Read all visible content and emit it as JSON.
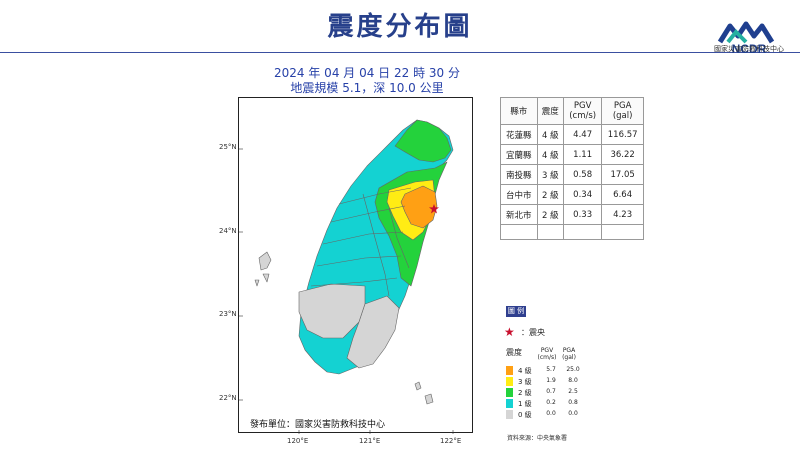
{
  "header": {
    "title": "震度分布圖",
    "logo_text": "NCDR",
    "logo_org": "國家災害防救科技中心",
    "datetime": "2024 年 04 月 04 日 22 時 30 分",
    "magnitude_depth": "地震規模 5.1，深 10.0 公里"
  },
  "map": {
    "lat_ticks": [
      "25°N",
      "24°N",
      "23°N",
      "22°N"
    ],
    "lon_ticks": [
      "120°E",
      "121°E",
      "122°E"
    ],
    "issuer": "發布單位：國家災害防救科技中心",
    "epicenter": {
      "lon": 121.62,
      "lat": 24.16
    },
    "colors": {
      "level_0": "#d5d5d5",
      "level_1": "#14d2d2",
      "level_2": "#24d23c",
      "level_3": "#ffec14",
      "level_4": "#ffa014",
      "epicenter": "#c8102e"
    }
  },
  "table": {
    "headers": [
      "縣市",
      "震度",
      "PGV\n(cm/s)",
      "PGA\n(gal)"
    ],
    "rows": [
      [
        "花蓮縣",
        "4 級",
        "4.47",
        "116.57"
      ],
      [
        "宜蘭縣",
        "4 級",
        "1.11",
        "36.22"
      ],
      [
        "南投縣",
        "3 級",
        "0.58",
        "17.05"
      ],
      [
        "台中市",
        "2 級",
        "0.34",
        "6.64"
      ],
      [
        "新北市",
        "2 級",
        "0.33",
        "4.23"
      ],
      [
        "",
        "",
        "",
        ""
      ]
    ]
  },
  "legend": {
    "badge": "圖 例",
    "epicenter_label": "：震央",
    "intensity_header": "震度",
    "pgv_header": "PGV\n(cm/s)",
    "pga_header": "PGA\n(gal)",
    "levels": [
      {
        "label": "4 級",
        "pgv": "5.7",
        "pga": "25.0",
        "color": "#ffa014"
      },
      {
        "label": "3 級",
        "pgv": "1.9",
        "pga": "8.0",
        "color": "#ffec14"
      },
      {
        "label": "2 級",
        "pgv": "0.7",
        "pga": "2.5",
        "color": "#24d23c"
      },
      {
        "label": "1 級",
        "pgv": "0.2",
        "pga": "0.8",
        "color": "#14d2d2"
      },
      {
        "label": "0 級",
        "pgv": "0.0",
        "pga": "0.0",
        "color": "#d5d5d5"
      }
    ],
    "source": "資料來源：中央氣象署"
  }
}
